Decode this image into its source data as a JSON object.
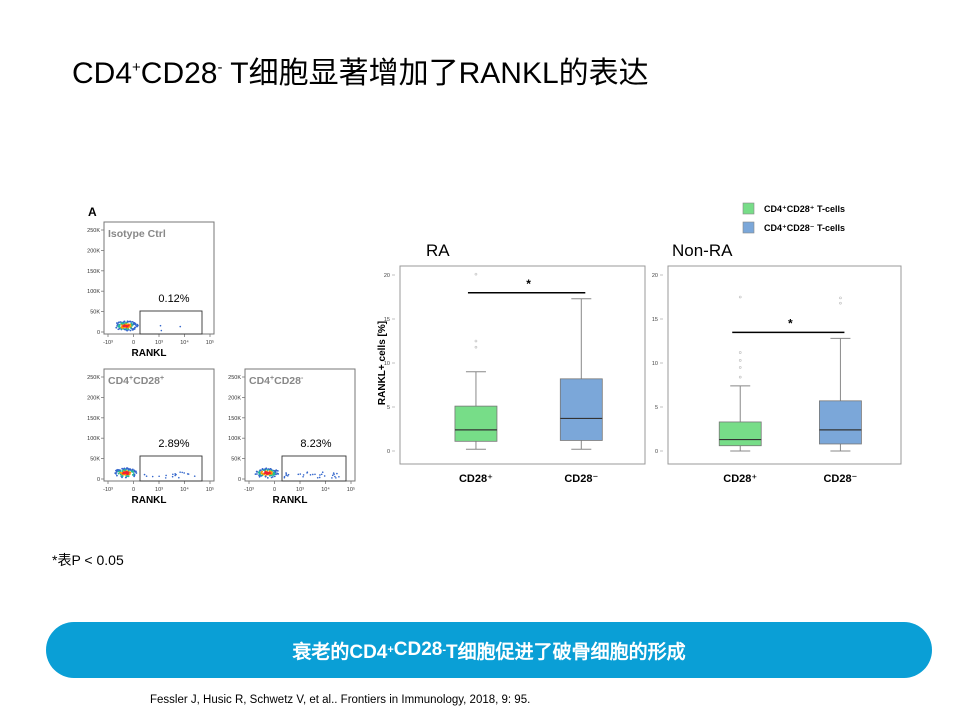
{
  "slide": {
    "title": {
      "base1": "CD4",
      "sup1": "+",
      "base2": "CD28",
      "sup2": "-",
      "rest": " T细胞显著增加了RANKL的表达"
    },
    "note": "*表P < 0.05",
    "banner": {
      "base1": "衰老的CD4",
      "sup1": "+",
      "base2": "CD28",
      "sup2": "-",
      "rest": " T细胞促进了破骨细胞的形成"
    },
    "reference": "Fessler J, Husic R, Schwetz V, et al.. Frontiers in Immunology, 2018, 9: 95."
  },
  "flow_panel": {
    "panel_letter": "A",
    "x_axis_label": "RANKL",
    "y_ticks": [
      "250K",
      "200K",
      "150K",
      "100K",
      "50K",
      "0"
    ],
    "x_ticks": [
      "-10³",
      "0",
      "10³",
      "10⁴",
      "10⁵"
    ],
    "plots": [
      {
        "label": "Isotype Ctrl",
        "label_sup": "",
        "label_tail": "",
        "gate_percent": "0.12%"
      },
      {
        "label": "CD4",
        "label_sup": "+",
        "label_tail": "CD28+",
        "gate_percent": "2.89%"
      },
      {
        "label": "CD4",
        "label_sup": "+",
        "label_tail": "CD28-",
        "gate_percent": "8.23%"
      }
    ]
  },
  "chart_data": {
    "type": "box",
    "ylabel": "RANKL+ cells [%]",
    "ylim": [
      0,
      20
    ],
    "y_ticks": [
      0,
      5,
      10,
      15,
      20
    ],
    "legend": {
      "position": "top-right",
      "entries": [
        {
          "name": "CD4⁺CD28⁺ T-cells",
          "color": "#77dd88"
        },
        {
          "name": "CD4⁺CD28⁻ T-cells",
          "color": "#7ba7d9"
        }
      ]
    },
    "panels": [
      {
        "title": "RA",
        "categories": [
          "CD28⁺",
          "CD28⁻"
        ],
        "significance": "*",
        "boxes": [
          {
            "category": "CD28⁺",
            "color": "#77dd88",
            "min": 0.2,
            "q1": 1.1,
            "median": 2.4,
            "q3": 5.1,
            "max": 9.0,
            "outliers": [
              11.8,
              12.5,
              20.1
            ]
          },
          {
            "category": "CD28⁻",
            "color": "#7ba7d9",
            "min": 0.2,
            "q1": 1.2,
            "median": 3.7,
            "q3": 8.2,
            "max": 17.3,
            "outliers": []
          }
        ]
      },
      {
        "title": "Non-RA",
        "categories": [
          "CD28⁺",
          "CD28⁻"
        ],
        "significance": "*",
        "boxes": [
          {
            "category": "CD28⁺",
            "color": "#77dd88",
            "min": 0.0,
            "q1": 0.6,
            "median": 1.3,
            "q3": 3.3,
            "max": 7.4,
            "outliers": [
              8.4,
              9.5,
              10.3,
              11.2,
              17.5
            ]
          },
          {
            "category": "CD28⁻",
            "color": "#7ba7d9",
            "min": 0.0,
            "q1": 0.8,
            "median": 2.4,
            "q3": 5.7,
            "max": 12.8,
            "outliers": [
              16.8,
              17.4
            ]
          }
        ]
      }
    ]
  }
}
